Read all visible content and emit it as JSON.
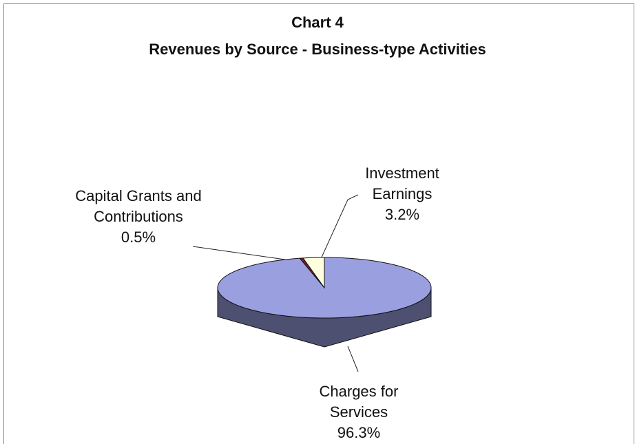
{
  "chart_data": {
    "type": "pie",
    "title": "Chart 4",
    "subtitle": "Revenues by Source - Business-type Activities",
    "categories": [
      "Charges for Services",
      "Capital Grants and Contributions",
      "Investment Earnings"
    ],
    "values": [
      96.3,
      0.5,
      3.2
    ],
    "value_labels": [
      "96.3%",
      "0.5%",
      "3.2%"
    ],
    "colors": [
      "#9a9fe0",
      "#7a1c2c",
      "#ffffe0"
    ],
    "three_d": true
  }
}
